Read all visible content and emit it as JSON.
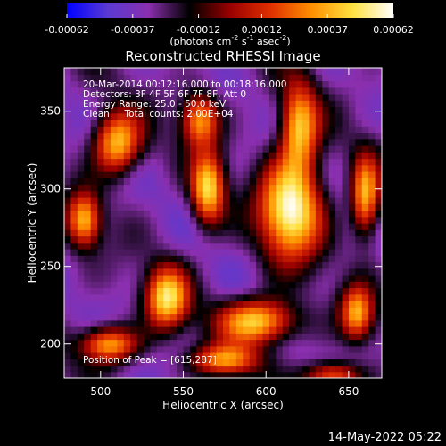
{
  "chart_data": {
    "type": "heatmap",
    "title": "Reconstructed RHESSI Image",
    "xlabel": "Heliocentric X (arcsec)",
    "ylabel": "Heliocentric Y (arcsec)",
    "xlim": [
      478,
      670
    ],
    "ylim": [
      178,
      378
    ],
    "xticks": [
      500,
      550,
      600,
      650
    ],
    "yticks": [
      200,
      250,
      300,
      350
    ],
    "colorbar": {
      "range": [
        -0.00062,
        0.00062
      ],
      "ticks": [
        "-0.00062",
        "-0.00037",
        "-0.00012",
        "0.00012",
        "0.00037",
        "0.00062"
      ],
      "tick_values": [
        -0.00062,
        -0.00037,
        -0.00012,
        0.00012,
        0.00037,
        0.00062
      ],
      "unit_parts": [
        "(photons cm",
        "-2",
        " s",
        "-1",
        " asec",
        "-2",
        ")"
      ],
      "colors": [
        "#0000ff",
        "#5a3ad2",
        "#8a2fae",
        "#000000",
        "#9a0000",
        "#e03000",
        "#ff9000",
        "#ffe040",
        "#ffffff"
      ]
    },
    "annotations": [
      "20-Mar-2014 00:12:16.000 to 00:18:16.000",
      "Detectors: 3F 4F 5F 6F 7F 8F, Att 0",
      "Energy Range: 25.0 - 50.0 keV",
      "Clean     Total counts: 2.00E+04"
    ],
    "peak_label": "Position of Peak = [615,287]",
    "peak": [
      615,
      287
    ],
    "sources": [
      {
        "x": 615,
        "y": 287,
        "value": 0.00062,
        "sx": 13,
        "sy": 22
      },
      {
        "x": 540,
        "y": 230,
        "value": 0.00048,
        "sx": 9,
        "sy": 14
      },
      {
        "x": 510,
        "y": 330,
        "value": 0.00045,
        "sx": 10,
        "sy": 14
      },
      {
        "x": 490,
        "y": 280,
        "value": 0.0004,
        "sx": 7,
        "sy": 12
      },
      {
        "x": 565,
        "y": 300,
        "value": 0.00046,
        "sx": 7,
        "sy": 16
      },
      {
        "x": 560,
        "y": 345,
        "value": 0.00035,
        "sx": 8,
        "sy": 12
      },
      {
        "x": 595,
        "y": 215,
        "value": 0.00048,
        "sx": 16,
        "sy": 10
      },
      {
        "x": 620,
        "y": 340,
        "value": 0.00042,
        "sx": 8,
        "sy": 20
      },
      {
        "x": 660,
        "y": 295,
        "value": 0.0004,
        "sx": 6,
        "sy": 18
      },
      {
        "x": 655,
        "y": 220,
        "value": 0.00036,
        "sx": 7,
        "sy": 12
      },
      {
        "x": 505,
        "y": 200,
        "value": 0.0004,
        "sx": 12,
        "sy": 8
      },
      {
        "x": 575,
        "y": 190,
        "value": 0.0003,
        "sx": 14,
        "sy": 7
      },
      {
        "x": 640,
        "y": 180,
        "value": 0.00028,
        "sx": 12,
        "sy": 6
      }
    ]
  },
  "footer": {
    "timestamp": "14-May-2022 05:22"
  }
}
